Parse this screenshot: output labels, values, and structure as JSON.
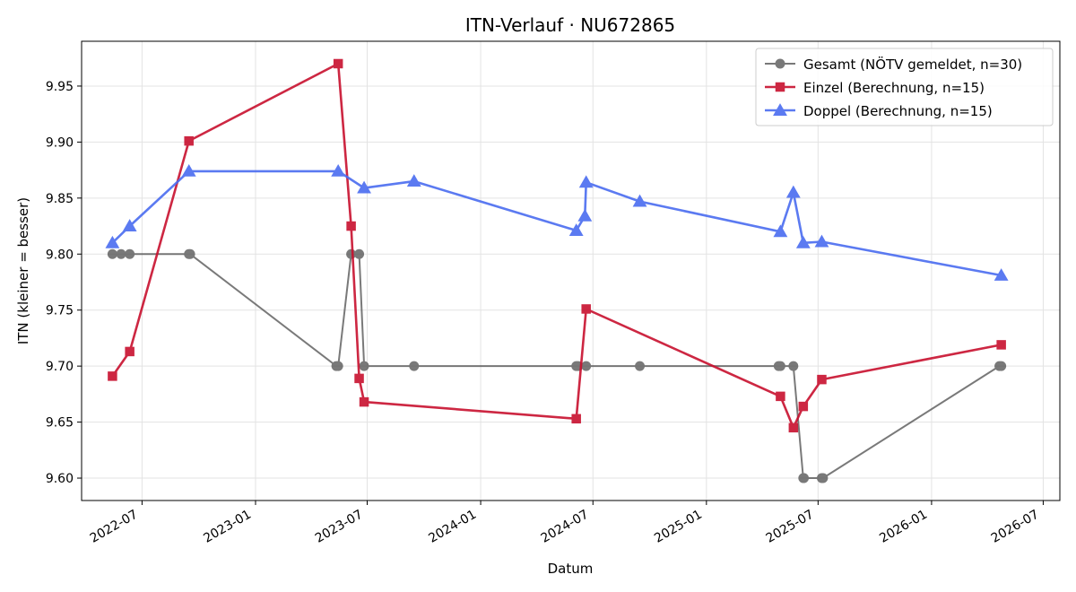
{
  "chart_data": {
    "type": "line",
    "title": "ITN-Verlauf · NU672865",
    "xlabel": "Datum",
    "ylabel": "ITN  (kleiner = besser)",
    "x_type": "date",
    "xlim": [
      "2022-03-25",
      "2026-07-28"
    ],
    "ylim": [
      9.58,
      9.99
    ],
    "x_ticks": [
      "2022-07-01",
      "2023-01-01",
      "2023-07-01",
      "2024-01-01",
      "2024-07-01",
      "2025-01-01",
      "2025-07-01",
      "2026-01-01",
      "2026-07-01"
    ],
    "x_tick_labels": [
      "2022-07",
      "2023-01",
      "2023-07",
      "2024-01",
      "2024-07",
      "2025-01",
      "2025-07",
      "2026-01",
      "2026-07"
    ],
    "y_ticks": [
      9.6,
      9.65,
      9.7,
      9.75,
      9.8,
      9.85,
      9.9,
      9.95
    ],
    "y_tick_labels": [
      "9.60",
      "9.65",
      "9.70",
      "9.75",
      "9.80",
      "9.85",
      "9.90",
      "9.95"
    ],
    "grid": true,
    "legend_position": "top-right",
    "series": [
      {
        "name": "Gesamt (NÖTV gemeldet, n=30)",
        "color": "#4d4d4d",
        "marker": "circle",
        "points": [
          [
            "2022-05-14",
            9.8
          ],
          [
            "2022-05-28",
            9.8
          ],
          [
            "2022-06-11",
            9.8
          ],
          [
            "2022-09-15",
            9.8
          ],
          [
            "2022-09-17",
            9.8
          ],
          [
            "2023-05-12",
            9.7
          ],
          [
            "2023-05-15",
            9.7
          ],
          [
            "2023-06-05",
            9.8
          ],
          [
            "2023-06-18",
            9.8
          ],
          [
            "2023-06-26",
            9.7
          ],
          [
            "2023-09-15",
            9.7
          ],
          [
            "2024-06-04",
            9.7
          ],
          [
            "2024-06-07",
            9.7
          ],
          [
            "2024-06-20",
            9.7
          ],
          [
            "2024-09-15",
            9.7
          ],
          [
            "2025-04-28",
            9.7
          ],
          [
            "2025-05-01",
            9.7
          ],
          [
            "2025-05-22",
            9.7
          ],
          [
            "2025-06-07",
            9.6
          ],
          [
            "2025-06-08",
            9.6
          ],
          [
            "2025-07-07",
            9.6
          ],
          [
            "2025-07-09",
            9.6
          ],
          [
            "2026-04-21",
            9.7
          ],
          [
            "2026-04-24",
            9.7
          ]
        ]
      },
      {
        "name": "Einzel (Berechnung, n=15)",
        "color": "#c8102e",
        "marker": "square",
        "points": [
          [
            "2022-05-14",
            9.691
          ],
          [
            "2022-06-11",
            9.713
          ],
          [
            "2022-09-15",
            9.901
          ],
          [
            "2023-05-15",
            9.97
          ],
          [
            "2023-06-05",
            9.825
          ],
          [
            "2023-06-18",
            9.689
          ],
          [
            "2023-06-26",
            9.668
          ],
          [
            "2024-06-04",
            9.653
          ],
          [
            "2024-06-20",
            9.751
          ],
          [
            "2025-05-01",
            9.673
          ],
          [
            "2025-05-22",
            9.645
          ],
          [
            "2025-06-07",
            9.664
          ],
          [
            "2025-07-07",
            9.688
          ],
          [
            "2026-04-24",
            9.719
          ]
        ]
      },
      {
        "name": "Doppel (Berechnung, n=15)",
        "color": "#4a6cf0",
        "marker": "triangle",
        "points": [
          [
            "2022-05-14",
            9.81
          ],
          [
            "2022-06-11",
            9.825
          ],
          [
            "2022-09-15",
            9.874
          ],
          [
            "2023-05-15",
            9.874
          ],
          [
            "2023-06-26",
            9.859
          ],
          [
            "2023-09-15",
            9.865
          ],
          [
            "2024-06-04",
            9.821
          ],
          [
            "2024-06-18",
            9.834
          ],
          [
            "2024-06-20",
            9.864
          ],
          [
            "2024-09-15",
            9.847
          ],
          [
            "2025-05-01",
            9.82
          ],
          [
            "2025-05-22",
            9.855
          ],
          [
            "2025-06-07",
            9.81
          ],
          [
            "2025-07-07",
            9.811
          ],
          [
            "2026-04-24",
            9.781
          ]
        ]
      }
    ]
  }
}
